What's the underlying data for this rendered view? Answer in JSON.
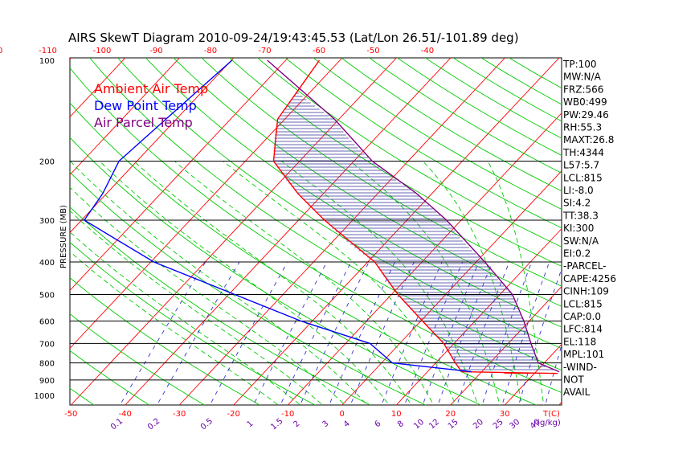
{
  "chart_data": {
    "type": "skewt",
    "title": "AIRS SkewT Diagram 2010-09-24/19:43:45.53 (Lat/Lon 26.51/-101.89 deg)",
    "ylabel": "PRESSURE (MB)",
    "pressure_ticks": [
      "100",
      "200",
      "300",
      "400",
      "500",
      "600",
      "700",
      "800",
      "900",
      "1000"
    ],
    "pressure_tick_values": [
      100,
      200,
      300,
      400,
      500,
      600,
      700,
      800,
      900,
      1000
    ],
    "bottom_temp_ticks": [
      "-50",
      "-40",
      "-30",
      "-20",
      "-10",
      "0",
      "10",
      "20",
      "30"
    ],
    "bottom_temp_values": [
      -50,
      -40,
      -30,
      -20,
      -10,
      0,
      10,
      20,
      30
    ],
    "bottom_temp_unit": "T(C)",
    "top_temp_ticks": [
      "-120",
      "-110",
      "-100",
      "-90",
      "-80",
      "-70",
      "-60",
      "-50",
      "-40"
    ],
    "top_temp_values": [
      -120,
      -110,
      -100,
      -90,
      -80,
      -70,
      -60,
      -50,
      -40
    ],
    "mixing_ratio_ticks": [
      "0.1",
      "0.2",
      "0.5",
      "1",
      "1.5",
      "2",
      "3",
      "4",
      "6",
      "8",
      "10",
      "12",
      "15",
      "20",
      "25",
      "30",
      "40"
    ],
    "mixing_ratio_values": [
      0.1,
      0.2,
      0.5,
      1,
      1.5,
      2,
      3,
      4,
      6,
      8,
      10,
      12,
      15,
      20,
      25,
      30,
      40
    ],
    "mixing_ratio_unit": "r(g/kg)",
    "legend": [
      {
        "label": "Ambient Air Temp",
        "color": "#ff0000"
      },
      {
        "label": "Dew Point Temp",
        "color": "#0000ff"
      },
      {
        "label": "Air Parcel Temp",
        "color": "#800080"
      }
    ],
    "series": [
      {
        "name": "Ambient Air Temp",
        "color": "#ff0000",
        "pressure": [
          100,
          150,
          200,
          250,
          300,
          400,
          500,
          600,
          700,
          800,
          850,
          860
        ],
        "temperature": [
          -63.8,
          -61.3,
          -54.8,
          -44.7,
          -35.2,
          -18.7,
          -8.8,
          0.3,
          8.1,
          13.6,
          16.3,
          34.3
        ]
      },
      {
        "name": "Dew Point Temp",
        "color": "#0000ff",
        "pressure": [
          100,
          150,
          200,
          250,
          300,
          400,
          500,
          600,
          700,
          800,
          850
        ],
        "temperature": [
          -79.9,
          -81.9,
          -83.3,
          -80.7,
          -79.5,
          -59.4,
          -38.9,
          -22.1,
          -5.5,
          2.0,
          18.1
        ]
      },
      {
        "name": "Air Parcel Temp",
        "color": "#800080",
        "pressure": [
          100,
          150,
          200,
          250,
          300,
          400,
          500,
          600,
          700,
          800,
          850
        ],
        "temperature": [
          -73.4,
          -50.8,
          -36.6,
          -22.8,
          -12.7,
          1.6,
          12.3,
          19.0,
          24.2,
          28.9,
          34.3
        ]
      }
    ],
    "indices": [
      "TP:100",
      "MW:N/A",
      "FRZ:566",
      "WB0:499",
      "PW:29.46",
      "RH:55.3",
      "MAXT:26.8",
      "TH:4344",
      "L57:5.7",
      "LCL:815",
      "LI:-8.0",
      "SI:4.2",
      "TT:38.3",
      "KI:300",
      "SW:N/A",
      "EI:0.2",
      "-PARCEL-",
      "CAPE:4256",
      "CINH:109",
      "LCL:815",
      "CAP:0.0",
      "LFC:814",
      "EL:118",
      "MPL:101",
      "-WIND-",
      "NOT",
      "AVAIL"
    ],
    "colors": {
      "isotherm": "#ff0000",
      "dry_adiabat": "#00cc00",
      "moist_adiabat": "#00cc00",
      "mixing_ratio": "#3333cc",
      "isobar": "#000000",
      "hatch_positive": "#333399",
      "hatch_negative": "#ff0000"
    }
  }
}
